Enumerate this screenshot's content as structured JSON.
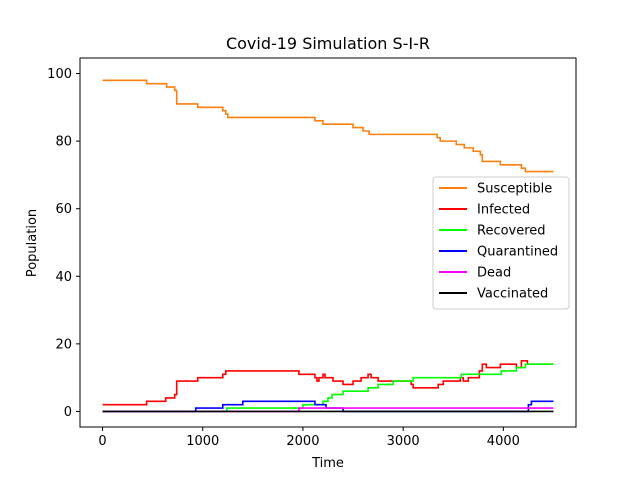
{
  "chart_data": {
    "type": "line",
    "title": "Covid-19 Simulation S-I-R",
    "xlabel": "Time",
    "ylabel": "Population",
    "xlim": [
      -225,
      4725
    ],
    "ylim": [
      -4.6,
      104.6
    ],
    "xticks": [
      0,
      1000,
      2000,
      3000,
      4000
    ],
    "yticks": [
      0,
      20,
      40,
      60,
      80,
      100
    ],
    "grid": false,
    "legend_position": "center-right",
    "series": [
      {
        "name": "Susceptible",
        "color": "#ff7f0e",
        "points": [
          [
            0,
            98
          ],
          [
            440,
            98
          ],
          [
            440,
            97
          ],
          [
            640,
            97
          ],
          [
            640,
            96
          ],
          [
            720,
            96
          ],
          [
            720,
            95
          ],
          [
            740,
            95
          ],
          [
            740,
            91
          ],
          [
            950,
            91
          ],
          [
            950,
            90
          ],
          [
            1200,
            90
          ],
          [
            1200,
            89
          ],
          [
            1230,
            89
          ],
          [
            1230,
            88
          ],
          [
            1250,
            88
          ],
          [
            1250,
            87
          ],
          [
            2120,
            87
          ],
          [
            2120,
            86
          ],
          [
            2200,
            86
          ],
          [
            2200,
            85
          ],
          [
            2500,
            85
          ],
          [
            2500,
            84
          ],
          [
            2600,
            84
          ],
          [
            2600,
            83
          ],
          [
            2660,
            83
          ],
          [
            2660,
            82
          ],
          [
            3340,
            82
          ],
          [
            3340,
            81
          ],
          [
            3370,
            81
          ],
          [
            3370,
            80
          ],
          [
            3530,
            80
          ],
          [
            3530,
            79
          ],
          [
            3610,
            79
          ],
          [
            3610,
            78
          ],
          [
            3700,
            78
          ],
          [
            3700,
            77
          ],
          [
            3770,
            77
          ],
          [
            3770,
            76
          ],
          [
            3790,
            76
          ],
          [
            3790,
            74
          ],
          [
            3970,
            74
          ],
          [
            3970,
            73
          ],
          [
            4180,
            73
          ],
          [
            4180,
            72
          ],
          [
            4220,
            72
          ],
          [
            4220,
            71
          ],
          [
            4500,
            71
          ]
        ]
      },
      {
        "name": "Infected",
        "color": "#ff0000",
        "points": [
          [
            0,
            2
          ],
          [
            440,
            2
          ],
          [
            440,
            3
          ],
          [
            630,
            3
          ],
          [
            630,
            4
          ],
          [
            720,
            4
          ],
          [
            720,
            5
          ],
          [
            740,
            5
          ],
          [
            740,
            9
          ],
          [
            950,
            9
          ],
          [
            950,
            10
          ],
          [
            1200,
            10
          ],
          [
            1200,
            11
          ],
          [
            1230,
            11
          ],
          [
            1230,
            12
          ],
          [
            1960,
            12
          ],
          [
            1960,
            11
          ],
          [
            2120,
            11
          ],
          [
            2120,
            10
          ],
          [
            2140,
            10
          ],
          [
            2140,
            9
          ],
          [
            2160,
            9
          ],
          [
            2160,
            10
          ],
          [
            2200,
            10
          ],
          [
            2200,
            11
          ],
          [
            2220,
            11
          ],
          [
            2220,
            10
          ],
          [
            2300,
            10
          ],
          [
            2300,
            9
          ],
          [
            2400,
            9
          ],
          [
            2400,
            8
          ],
          [
            2500,
            8
          ],
          [
            2500,
            9
          ],
          [
            2580,
            9
          ],
          [
            2580,
            10
          ],
          [
            2650,
            10
          ],
          [
            2650,
            11
          ],
          [
            2680,
            11
          ],
          [
            2680,
            10
          ],
          [
            2750,
            10
          ],
          [
            2750,
            9
          ],
          [
            3080,
            9
          ],
          [
            3080,
            8
          ],
          [
            3100,
            8
          ],
          [
            3100,
            7
          ],
          [
            3350,
            7
          ],
          [
            3350,
            8
          ],
          [
            3400,
            8
          ],
          [
            3400,
            9
          ],
          [
            3570,
            9
          ],
          [
            3570,
            10
          ],
          [
            3600,
            10
          ],
          [
            3600,
            9
          ],
          [
            3650,
            9
          ],
          [
            3650,
            10
          ],
          [
            3760,
            10
          ],
          [
            3760,
            12
          ],
          [
            3790,
            12
          ],
          [
            3790,
            14
          ],
          [
            3830,
            14
          ],
          [
            3830,
            13
          ],
          [
            3970,
            13
          ],
          [
            3970,
            14
          ],
          [
            4130,
            14
          ],
          [
            4130,
            13
          ],
          [
            4180,
            13
          ],
          [
            4180,
            15
          ],
          [
            4240,
            15
          ],
          [
            4240,
            14
          ],
          [
            4500,
            14
          ]
        ]
      },
      {
        "name": "Recovered",
        "color": "#00ff00",
        "points": [
          [
            0,
            0
          ],
          [
            1240,
            0
          ],
          [
            1240,
            1
          ],
          [
            2000,
            1
          ],
          [
            2000,
            2
          ],
          [
            2200,
            2
          ],
          [
            2200,
            3
          ],
          [
            2250,
            3
          ],
          [
            2250,
            4
          ],
          [
            2290,
            4
          ],
          [
            2290,
            5
          ],
          [
            2400,
            5
          ],
          [
            2400,
            6
          ],
          [
            2650,
            6
          ],
          [
            2650,
            7
          ],
          [
            2750,
            7
          ],
          [
            2750,
            8
          ],
          [
            2900,
            8
          ],
          [
            2900,
            9
          ],
          [
            3100,
            9
          ],
          [
            3100,
            10
          ],
          [
            3580,
            10
          ],
          [
            3580,
            11
          ],
          [
            3980,
            11
          ],
          [
            3980,
            12
          ],
          [
            4130,
            12
          ],
          [
            4130,
            13
          ],
          [
            4220,
            13
          ],
          [
            4220,
            14
          ],
          [
            4500,
            14
          ]
        ]
      },
      {
        "name": "Quarantined",
        "color": "#0000ff",
        "points": [
          [
            0,
            0
          ],
          [
            930,
            0
          ],
          [
            930,
            1
          ],
          [
            1200,
            1
          ],
          [
            1200,
            2
          ],
          [
            1400,
            2
          ],
          [
            1400,
            3
          ],
          [
            2120,
            3
          ],
          [
            2120,
            2
          ],
          [
            2230,
            2
          ],
          [
            2230,
            1
          ],
          [
            2400,
            1
          ],
          [
            2400,
            0
          ],
          [
            4250,
            0
          ],
          [
            4250,
            2
          ],
          [
            4280,
            2
          ],
          [
            4280,
            3
          ],
          [
            4500,
            3
          ]
        ]
      },
      {
        "name": "Dead",
        "color": "#ff00ff",
        "points": [
          [
            0,
            0
          ],
          [
            1960,
            0
          ],
          [
            1960,
            1
          ],
          [
            4500,
            1
          ]
        ]
      },
      {
        "name": "Vaccinated",
        "color": "#000000",
        "points": [
          [
            0,
            0
          ],
          [
            4500,
            0
          ]
        ]
      }
    ]
  }
}
